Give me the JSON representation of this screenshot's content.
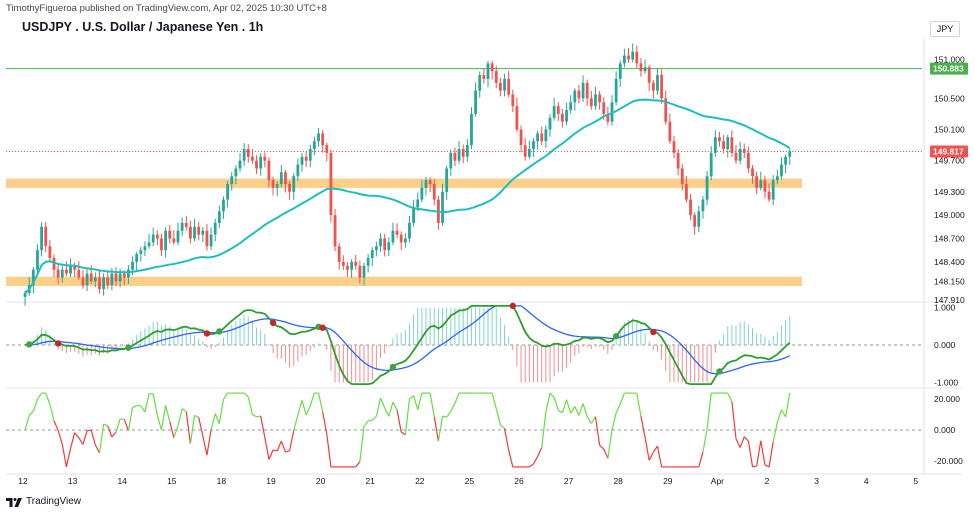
{
  "header": {
    "publisher": "TimothyFigueroa published on TradingView.com, Apr 02, 2025 10:30 UTC+8",
    "title": "USDJPY . U.S. Dollar / Japanese Yen . 1h",
    "currency": "JPY"
  },
  "footer": {
    "brand": "TradingView"
  },
  "colors": {
    "up": "#26a69a",
    "down": "#ef5350",
    "ma": "#1ebebe",
    "zone": "#fcc874",
    "hline": "#4caf50",
    "current": "#ef5350",
    "macd_fast": "#2e9e2e",
    "macd_slow": "#2962ff",
    "cross_down": "#c62828",
    "cross_up": "#43a047",
    "osc_up": "#66dd44",
    "osc_down": "#ef3b3b"
  },
  "chart_data": {
    "type": "candlestick",
    "symbol": "USDJPY",
    "interval": "1h",
    "x_ticks": [
      "12",
      "13",
      "14",
      "15",
      "18",
      "19",
      "20",
      "21",
      "22",
      "25",
      "26",
      "27",
      "28",
      "29",
      "Apr",
      "2",
      "3",
      "4",
      "5"
    ],
    "price_axis": {
      "ticks": [
        "151.000",
        "150.500",
        "150.100",
        "149.700",
        "149.300",
        "149.000",
        "148.700",
        "148.400",
        "148.150",
        "147.910"
      ],
      "ylim": [
        147.91,
        151.25
      ]
    },
    "price_labels": [
      {
        "name": "horizontal-line",
        "value": "150.883"
      },
      {
        "name": "last-price",
        "value": "149.817"
      }
    ],
    "zones": [
      {
        "name": "upper-zone",
        "from": 149.35,
        "to": 149.47
      },
      {
        "name": "lower-zone",
        "from": 148.09,
        "to": 148.21
      }
    ],
    "close_series": [
      {
        "day": "12",
        "values": [
          148.0,
          148.1,
          148.3,
          148.55,
          148.85,
          148.6,
          148.45,
          148.3,
          148.2,
          148.3,
          148.25,
          148.35
        ]
      },
      {
        "day": "13",
        "values": [
          148.3,
          148.2,
          148.1,
          148.25,
          148.15,
          148.2,
          148.05,
          148.2,
          148.1,
          148.25,
          148.15,
          148.25
        ]
      },
      {
        "day": "14",
        "values": [
          148.2,
          148.3,
          148.4,
          148.5,
          148.55,
          148.6,
          148.65,
          148.75,
          148.7,
          148.55,
          148.8,
          148.7
        ]
      },
      {
        "day": "15",
        "values": [
          148.65,
          148.8,
          148.9,
          148.85,
          148.7,
          148.85,
          148.75,
          148.8,
          148.6,
          148.75,
          148.9,
          149.05
        ]
      },
      {
        "day": "18",
        "values": [
          149.2,
          149.4,
          149.5,
          149.6,
          149.7,
          149.85,
          149.75,
          149.7,
          149.6,
          149.75,
          149.7,
          149.45
        ]
      },
      {
        "day": "19",
        "values": [
          149.35,
          149.4,
          149.55,
          149.4,
          149.3,
          149.5,
          149.65,
          149.75,
          149.7,
          149.85,
          149.95,
          150.05
        ]
      },
      {
        "day": "20",
        "values": [
          149.9,
          149.8,
          149.0,
          148.6,
          148.4,
          148.35,
          148.3,
          148.4,
          148.35,
          148.2,
          148.35,
          148.45
        ]
      },
      {
        "day": "21",
        "values": [
          148.55,
          148.6,
          148.7,
          148.55,
          148.65,
          148.8,
          148.75,
          148.65,
          148.7,
          148.9,
          149.1,
          149.2
        ]
      },
      {
        "day": "22",
        "values": [
          149.35,
          149.45,
          149.4,
          149.2,
          148.9,
          149.3,
          149.6,
          149.8,
          149.7,
          149.85,
          149.75,
          149.9
        ]
      },
      {
        "day": "25",
        "values": [
          150.3,
          150.6,
          150.8,
          150.75,
          150.95,
          150.85,
          150.7,
          150.6,
          150.75,
          150.55,
          150.4,
          150.1
        ]
      },
      {
        "day": "26",
        "values": [
          149.9,
          149.75,
          149.85,
          149.95,
          150.05,
          149.95,
          150.1,
          150.25,
          150.4,
          150.3,
          150.2,
          150.35
        ]
      },
      {
        "day": "27",
        "values": [
          150.45,
          150.6,
          150.5,
          150.7,
          150.5,
          150.4,
          150.55,
          150.45,
          150.3,
          150.2,
          150.45,
          150.75
        ]
      },
      {
        "day": "28",
        "values": [
          150.95,
          151.05,
          151.0,
          151.1,
          150.95,
          150.85,
          150.9,
          150.7,
          150.6,
          150.8,
          150.5,
          150.2
        ]
      },
      {
        "day": "29",
        "values": [
          149.95,
          149.8,
          149.6,
          149.4,
          149.2,
          149.0,
          148.85,
          149.05,
          149.2,
          149.5,
          149.8,
          150.0
        ]
      },
      {
        "day": "Apr",
        "values": [
          149.95,
          149.85,
          150.0,
          149.8,
          149.7,
          149.85,
          149.8,
          149.6,
          149.5,
          149.35,
          149.45,
          149.3
        ]
      },
      {
        "day": "2",
        "values": [
          149.2,
          149.45,
          149.5,
          149.65,
          149.75,
          149.82
        ]
      }
    ],
    "panels": [
      {
        "name": "macd-oscillator",
        "ticks": [
          "1.000",
          "0.000",
          "-1.000"
        ],
        "ylim": [
          -1.1,
          1.1
        ]
      },
      {
        "name": "rsi-oscillator",
        "ticks": [
          "20.000",
          "0.000",
          "-20.000"
        ],
        "ylim": [
          -26,
          26
        ]
      }
    ]
  }
}
